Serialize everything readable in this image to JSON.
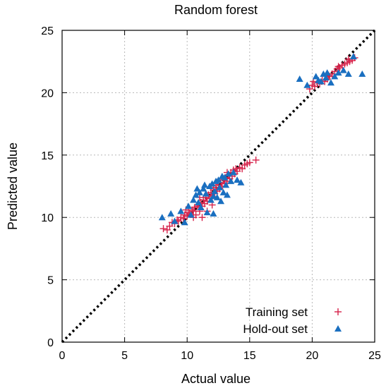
{
  "chart_data": {
    "type": "scatter",
    "title": "Random forest",
    "xlabel": "Actual value",
    "ylabel": "Predicted value",
    "xlim": [
      0,
      25
    ],
    "ylim": [
      0,
      25
    ],
    "xticks": [
      "0",
      "5",
      "10",
      "15",
      "20",
      "25"
    ],
    "yticks": [
      "0",
      "5",
      "10",
      "15",
      "20",
      "25"
    ],
    "grid": true,
    "legend_position": "bottom-right",
    "reference_line": "y = x",
    "series": [
      {
        "name": "Training set",
        "marker": "plus",
        "color": "#d6224a",
        "points": [
          [
            8.1,
            9.1
          ],
          [
            8.4,
            9.0
          ],
          [
            8.6,
            9.3
          ],
          [
            8.8,
            9.6
          ],
          [
            9.0,
            9.5
          ],
          [
            9.2,
            9.8
          ],
          [
            9.3,
            9.7
          ],
          [
            9.5,
            10.0
          ],
          [
            9.7,
            9.9
          ],
          [
            9.8,
            10.2
          ],
          [
            10.0,
            10.1
          ],
          [
            10.1,
            10.4
          ],
          [
            10.2,
            10.3
          ],
          [
            10.4,
            10.6
          ],
          [
            10.5,
            10.5
          ],
          [
            10.6,
            10.8
          ],
          [
            10.7,
            10.2
          ],
          [
            10.8,
            10.9
          ],
          [
            10.9,
            11.0
          ],
          [
            11.0,
            10.5
          ],
          [
            11.1,
            11.2
          ],
          [
            11.2,
            10.9
          ],
          [
            11.3,
            11.4
          ],
          [
            11.4,
            11.1
          ],
          [
            11.5,
            11.6
          ],
          [
            11.6,
            11.3
          ],
          [
            11.7,
            11.8
          ],
          [
            11.8,
            11.5
          ],
          [
            11.9,
            12.0
          ],
          [
            12.0,
            11.7
          ],
          [
            12.1,
            12.2
          ],
          [
            12.2,
            11.9
          ],
          [
            12.3,
            12.4
          ],
          [
            12.4,
            12.1
          ],
          [
            12.5,
            12.6
          ],
          [
            12.6,
            12.3
          ],
          [
            12.7,
            12.8
          ],
          [
            12.8,
            12.5
          ],
          [
            12.9,
            13.0
          ],
          [
            13.0,
            12.7
          ],
          [
            13.1,
            13.2
          ],
          [
            13.2,
            12.9
          ],
          [
            13.3,
            13.4
          ],
          [
            13.4,
            13.1
          ],
          [
            13.5,
            13.6
          ],
          [
            13.6,
            13.3
          ],
          [
            13.7,
            13.8
          ],
          [
            13.8,
            13.5
          ],
          [
            13.9,
            13.9
          ],
          [
            14.0,
            13.7
          ],
          [
            14.2,
            14.0
          ],
          [
            14.4,
            13.9
          ],
          [
            14.6,
            14.2
          ],
          [
            14.8,
            14.3
          ],
          [
            15.0,
            14.4
          ],
          [
            15.5,
            14.6
          ],
          [
            11.2,
            10.0
          ],
          [
            11.6,
            10.5
          ],
          [
            12.0,
            11.0
          ],
          [
            10.5,
            10.0
          ],
          [
            9.9,
            10.6
          ],
          [
            12.4,
            12.8
          ],
          [
            13.2,
            13.6
          ],
          [
            11.0,
            11.6
          ],
          [
            19.8,
            20.3
          ],
          [
            20.0,
            20.6
          ],
          [
            20.2,
            20.5
          ],
          [
            20.4,
            20.8
          ],
          [
            20.6,
            20.7
          ],
          [
            20.8,
            21.0
          ],
          [
            21.0,
            20.9
          ],
          [
            21.2,
            21.1
          ],
          [
            21.4,
            21.3
          ],
          [
            21.6,
            21.5
          ],
          [
            21.8,
            21.7
          ],
          [
            22.0,
            21.9
          ],
          [
            22.2,
            22.0
          ],
          [
            22.4,
            22.2
          ],
          [
            22.6,
            22.3
          ],
          [
            22.8,
            22.4
          ],
          [
            23.0,
            22.5
          ],
          [
            23.2,
            22.6
          ],
          [
            23.4,
            22.8
          ],
          [
            20.1,
            20.9
          ],
          [
            21.3,
            21.4
          ],
          [
            22.1,
            22.1
          ],
          [
            22.9,
            22.7
          ]
        ]
      },
      {
        "name": "Hold-out set",
        "marker": "triangle",
        "color": "#1a6fc0",
        "points": [
          [
            8.0,
            10.0
          ],
          [
            8.7,
            10.3
          ],
          [
            9.0,
            9.7
          ],
          [
            9.5,
            10.5
          ],
          [
            9.8,
            9.6
          ],
          [
            10.1,
            10.9
          ],
          [
            10.3,
            10.2
          ],
          [
            10.5,
            11.4
          ],
          [
            10.7,
            11.8
          ],
          [
            10.9,
            11.2
          ],
          [
            11.0,
            12.0
          ],
          [
            11.1,
            10.8
          ],
          [
            11.3,
            12.3
          ],
          [
            11.5,
            11.9
          ],
          [
            11.6,
            10.4
          ],
          [
            11.8,
            12.5
          ],
          [
            11.9,
            11.4
          ],
          [
            12.0,
            12.7
          ],
          [
            12.1,
            10.3
          ],
          [
            12.2,
            12.1
          ],
          [
            12.3,
            12.9
          ],
          [
            12.4,
            11.6
          ],
          [
            12.5,
            13.0
          ],
          [
            12.6,
            12.4
          ],
          [
            12.8,
            13.3
          ],
          [
            12.9,
            12.0
          ],
          [
            13.0,
            13.2
          ],
          [
            13.1,
            12.6
          ],
          [
            13.3,
            13.5
          ],
          [
            13.5,
            12.9
          ],
          [
            13.7,
            13.6
          ],
          [
            14.0,
            13.0
          ],
          [
            14.3,
            12.8
          ],
          [
            10.8,
            12.3
          ],
          [
            11.4,
            12.6
          ],
          [
            12.7,
            11.3
          ],
          [
            13.2,
            11.8
          ],
          [
            12.1,
            11.7
          ],
          [
            19.0,
            21.1
          ],
          [
            19.6,
            20.6
          ],
          [
            20.3,
            21.3
          ],
          [
            20.5,
            21.0
          ],
          [
            20.9,
            21.5
          ],
          [
            21.1,
            21.2
          ],
          [
            21.5,
            20.8
          ],
          [
            21.8,
            21.3
          ],
          [
            22.1,
            21.6
          ],
          [
            22.5,
            21.8
          ],
          [
            22.9,
            21.5
          ],
          [
            23.3,
            22.9
          ],
          [
            24.0,
            21.5
          ],
          [
            21.2,
            21.6
          ],
          [
            20.7,
            20.9
          ]
        ]
      }
    ]
  }
}
